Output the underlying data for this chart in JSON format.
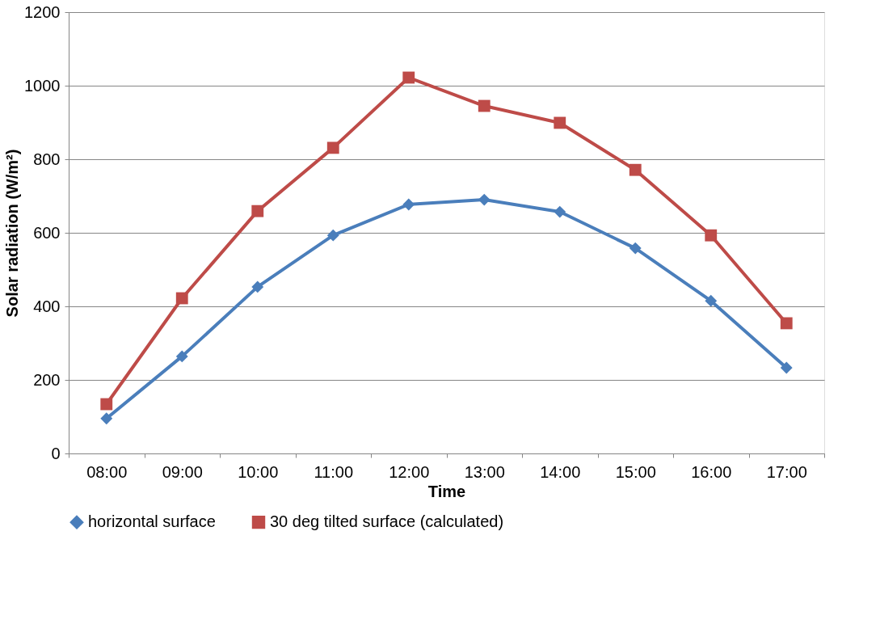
{
  "chart_data": {
    "type": "line",
    "xlabel": "Time",
    "ylabel": "Solar radiation (W/m²)",
    "categories": [
      "08:00",
      "09:00",
      "10:00",
      "11:00",
      "12:00",
      "13:00",
      "14:00",
      "15:00",
      "16:00",
      "17:00"
    ],
    "series": [
      {
        "name": "horizontal surface",
        "color": "#4a7ebb",
        "marker": "diamond",
        "values": [
          95,
          264,
          453,
          593,
          677,
          690,
          657,
          558,
          415,
          233
        ]
      },
      {
        "name": "30 deg tilted surface (calculated)",
        "color": "#be4b48",
        "marker": "square",
        "values": [
          134,
          422,
          659,
          831,
          1022,
          945,
          899,
          771,
          593,
          354
        ]
      }
    ],
    "ylim": [
      0,
      1200
    ],
    "yticks": [
      0,
      200,
      400,
      600,
      800,
      1000,
      1200
    ],
    "grid": "y",
    "legend": "bottom",
    "line_style": "solid"
  }
}
